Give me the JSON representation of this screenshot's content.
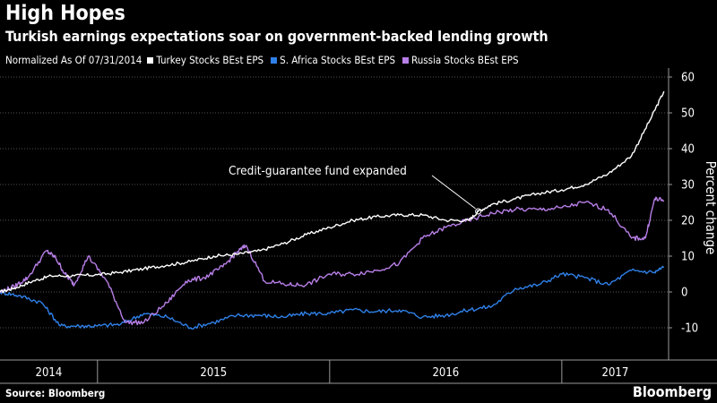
{
  "header": {
    "title": "High Hopes",
    "subtitle": "Turkish earnings expectations soar on government-backed lending growth"
  },
  "legend": {
    "note": "Normalized As Of 07/31/2014"
  },
  "footer": {
    "source": "Source: Bloomberg",
    "brand": "Bloomberg"
  },
  "colors": {
    "background": "#000000",
    "turkey": "#ffffff",
    "south_africa": "#2f80e8",
    "russia": "#b87fe8",
    "grid": "#6e6e6e"
  },
  "chart_data": {
    "type": "line",
    "title": "High Hopes",
    "subtitle": "Turkish earnings expectations soar on government-backed lending growth",
    "ylabel": "Percent change",
    "xlabel": "",
    "ylim": [
      -15,
      62
    ],
    "yticks": [
      -10,
      0,
      10,
      20,
      30,
      40,
      50,
      60
    ],
    "xlim": [
      2014.58,
      2017.46
    ],
    "xticks": [
      2014,
      2015,
      2016,
      2017
    ],
    "year_boundaries": [
      2015,
      2016,
      2017
    ],
    "grid": true,
    "legend_position": "top",
    "annotation": {
      "text": "Credit-guarantee fund expanded",
      "x": 2016.64,
      "y": 22.5
    },
    "series": [
      {
        "name": "Turkey Stocks BEst EPS",
        "color": "#ffffff",
        "x": [
          2014.58,
          2014.64,
          2014.72,
          2014.8,
          2014.9,
          2015.0,
          2015.1,
          2015.2,
          2015.3,
          2015.4,
          2015.5,
          2015.6,
          2015.7,
          2015.8,
          2015.9,
          2016.0,
          2016.1,
          2016.2,
          2016.3,
          2016.4,
          2016.5,
          2016.6,
          2016.64,
          2016.7,
          2016.8,
          2016.9,
          2017.0,
          2017.1,
          2017.2,
          2017.3,
          2017.38,
          2017.44
        ],
        "values": [
          0,
          1,
          3,
          4.5,
          4.5,
          4.8,
          5.5,
          6.5,
          7.5,
          8.5,
          10,
          10.5,
          11.5,
          13.5,
          16,
          18,
          20,
          21,
          21.5,
          21.5,
          20,
          20,
          22.5,
          24.5,
          26,
          27.5,
          28.5,
          30,
          33,
          38,
          48,
          56
        ]
      },
      {
        "name": "S. Africa Stocks BEst EPS",
        "color": "#2f80e8",
        "x": [
          2014.58,
          2014.66,
          2014.76,
          2014.84,
          2014.92,
          2015.0,
          2015.1,
          2015.2,
          2015.3,
          2015.4,
          2015.5,
          2015.6,
          2015.7,
          2015.8,
          2015.9,
          2016.0,
          2016.1,
          2016.2,
          2016.3,
          2016.4,
          2016.5,
          2016.6,
          2016.7,
          2016.8,
          2016.9,
          2017.0,
          2017.1,
          2017.2,
          2017.3,
          2017.4,
          2017.44
        ],
        "values": [
          0,
          -1,
          -3,
          -9.5,
          -9.5,
          -9.5,
          -9,
          -6,
          -7,
          -10,
          -8.5,
          -6.5,
          -6.5,
          -7,
          -6,
          -6,
          -5,
          -5.5,
          -5,
          -7,
          -6.5,
          -5,
          -4,
          1,
          2,
          5,
          4,
          2,
          6,
          5.5,
          7
        ]
      },
      {
        "name": "Russia Stocks BEst EPS",
        "color": "#b87fe8",
        "x": [
          2014.58,
          2014.64,
          2014.7,
          2014.78,
          2014.82,
          2014.86,
          2014.9,
          2014.96,
          2015.04,
          2015.12,
          2015.2,
          2015.3,
          2015.38,
          2015.46,
          2015.54,
          2015.6,
          2015.64,
          2015.72,
          2015.82,
          2015.9,
          2016.0,
          2016.1,
          2016.2,
          2016.3,
          2016.4,
          2016.5,
          2016.6,
          2016.7,
          2016.8,
          2016.9,
          2017.0,
          2017.1,
          2017.2,
          2017.3,
          2017.36,
          2017.4,
          2017.44
        ],
        "values": [
          0,
          1.5,
          4,
          11.5,
          9.5,
          5,
          2,
          10,
          3,
          -8.5,
          -8.5,
          -3,
          3,
          4,
          7,
          11,
          13,
          3,
          2,
          2,
          5,
          5,
          6,
          8,
          15,
          18,
          20,
          22,
          23,
          23,
          23.5,
          25,
          23,
          15,
          15,
          26,
          25.5
        ]
      }
    ]
  }
}
